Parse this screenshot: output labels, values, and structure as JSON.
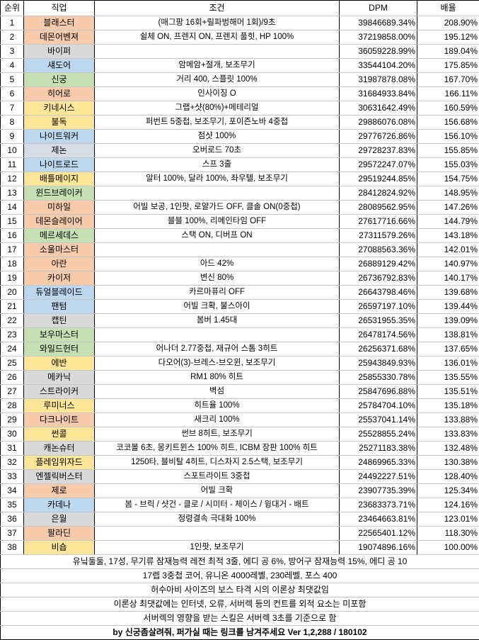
{
  "chart_data": {
    "type": "table",
    "columns": [
      "순위",
      "직업",
      "조건",
      "DPM",
      "배율"
    ],
    "rows": [
      {
        "rank": "1",
        "job": "블래스터",
        "group": "warrior",
        "condition": "(매그팡 16회+릴파벙해머 1회)/9초",
        "dpm": "39846689.34%",
        "ratio": "208.90%"
      },
      {
        "rank": "2",
        "job": "데몬어벤져",
        "group": "warrior",
        "condition": "쉴체 ON, 프렌지 ON, 프렌지 풀힛, HP 100%",
        "dpm": "37219858.00%",
        "ratio": "195.12%"
      },
      {
        "rank": "3",
        "job": "바이퍼",
        "group": "pirate",
        "condition": "",
        "dpm": "36059228.99%",
        "ratio": "189.04%"
      },
      {
        "rank": "4",
        "job": "섀도어",
        "group": "thief",
        "condition": "암메암+절개, 보조무기",
        "dpm": "33544104.20%",
        "ratio": "175.85%"
      },
      {
        "rank": "5",
        "job": "신궁",
        "group": "archer",
        "condition": "거리 400, 스플릿 100%",
        "dpm": "31987878.08%",
        "ratio": "167.70%"
      },
      {
        "rank": "6",
        "job": "히어로",
        "group": "warrior",
        "condition": "인사이징 O",
        "dpm": "31684933.84%",
        "ratio": "166.11%"
      },
      {
        "rank": "7",
        "job": "키네시스",
        "group": "mage",
        "condition": "그랩+샷(80%)+메테리얼",
        "dpm": "30631642.49%",
        "ratio": "160.59%"
      },
      {
        "rank": "8",
        "job": "불독",
        "group": "mage",
        "condition": "퍼번트 5중첩, 보조무기, 포이즌노바 4중첩",
        "dpm": "29886076.08%",
        "ratio": "156.68%"
      },
      {
        "rank": "9",
        "job": "나이트워커",
        "group": "thief",
        "condition": "점샷 100%",
        "dpm": "29776726.86%",
        "ratio": "156.10%"
      },
      {
        "rank": "10",
        "job": "제논",
        "group": "xenon",
        "condition": "오버로드 70초",
        "dpm": "29728237.83%",
        "ratio": "155.85%"
      },
      {
        "rank": "11",
        "job": "나이트로드",
        "group": "thief",
        "condition": "스프 3줄",
        "dpm": "29572247.07%",
        "ratio": "155.03%"
      },
      {
        "rank": "12",
        "job": "배틀메이지",
        "group": "mage",
        "condition": "알터 100%, 달라 100%, 좌우텔, 보조무기",
        "dpm": "29519244.85%",
        "ratio": "154.75%"
      },
      {
        "rank": "13",
        "job": "윈드브레이커",
        "group": "archer",
        "condition": "",
        "dpm": "28412824.92%",
        "ratio": "148.95%"
      },
      {
        "rank": "14",
        "job": "미하일",
        "group": "warrior",
        "condition": "어빌 보공, 1인팟, 로얄가드 OFF, 클솔 ON(0중첩)",
        "dpm": "28089562.95%",
        "ratio": "147.26%"
      },
      {
        "rank": "15",
        "job": "데몬슬레이어",
        "group": "warrior",
        "condition": "블블 100%, 리메인타임 OFF",
        "dpm": "27617716.66%",
        "ratio": "144.79%"
      },
      {
        "rank": "16",
        "job": "메르세데스",
        "group": "archer",
        "condition": "스택 ON, 디버프 ON",
        "dpm": "27311579.26%",
        "ratio": "143.18%"
      },
      {
        "rank": "17",
        "job": "소울마스터",
        "group": "warrior",
        "condition": "",
        "dpm": "27088563.36%",
        "ratio": "142.01%"
      },
      {
        "rank": "18",
        "job": "아란",
        "group": "warrior",
        "condition": "아드 42%",
        "dpm": "26889129.42%",
        "ratio": "140.97%"
      },
      {
        "rank": "19",
        "job": "카이저",
        "group": "warrior",
        "condition": "변신 80%",
        "dpm": "26736792.83%",
        "ratio": "140.17%"
      },
      {
        "rank": "20",
        "job": "듀얼블레이드",
        "group": "thief",
        "condition": "카르마퓨리 OFF",
        "dpm": "26643798.46%",
        "ratio": "139.68%"
      },
      {
        "rank": "21",
        "job": "팬텀",
        "group": "thief",
        "condition": "어빌 크확, 불스아이",
        "dpm": "26597197.10%",
        "ratio": "139.44%"
      },
      {
        "rank": "22",
        "job": "캡틴",
        "group": "pirate",
        "condition": "봄버 1.45대",
        "dpm": "26531955.35%",
        "ratio": "139.09%"
      },
      {
        "rank": "23",
        "job": "보우마스터",
        "group": "archer",
        "condition": "",
        "dpm": "26478174.56%",
        "ratio": "138.81%"
      },
      {
        "rank": "24",
        "job": "와일드헌터",
        "group": "archer",
        "condition": "어나더 2.77중첩, 재규어 스톰 3히트",
        "dpm": "26256371.68%",
        "ratio": "137.65%"
      },
      {
        "rank": "25",
        "job": "에반",
        "group": "mage",
        "condition": "다오어(3)-브레스-브오윈, 보조무기",
        "dpm": "25943849.93%",
        "ratio": "136.01%"
      },
      {
        "rank": "26",
        "job": "메카닉",
        "group": "pirate",
        "condition": "RM1 80% 히트",
        "dpm": "25855330.78%",
        "ratio": "135.55%"
      },
      {
        "rank": "27",
        "job": "스트라이커",
        "group": "pirate",
        "condition": "벽섬",
        "dpm": "25847696.88%",
        "ratio": "135.51%"
      },
      {
        "rank": "28",
        "job": "루미너스",
        "group": "mage",
        "condition": "히트율 100%",
        "dpm": "25784704.10%",
        "ratio": "135.18%"
      },
      {
        "rank": "29",
        "job": "다크나이트",
        "group": "warrior",
        "condition": "새크리 100%",
        "dpm": "25537041.14%",
        "ratio": "133.88%"
      },
      {
        "rank": "30",
        "job": "썬콜",
        "group": "mage",
        "condition": "썬브 8히트, 보조무기",
        "dpm": "25528855.24%",
        "ratio": "133.83%"
      },
      {
        "rank": "31",
        "job": "캐논슈터",
        "group": "pirate",
        "condition": "코코볼 6초, 몽키트윈스 100% 히트, ICBM 장판 100% 히트",
        "dpm": "25271183.38%",
        "ratio": "132.48%"
      },
      {
        "rank": "32",
        "job": "플레임위자드",
        "group": "mage",
        "condition": "1250타, 블비탈 4히트, 디스차지 2.5스택, 보조무기",
        "dpm": "24869965.33%",
        "ratio": "130.38%"
      },
      {
        "rank": "33",
        "job": "엔젤릭버스터",
        "group": "pirate",
        "condition": "스포트라이트 3중첩",
        "dpm": "24492227.51%",
        "ratio": "128.40%"
      },
      {
        "rank": "34",
        "job": "제로",
        "group": "warrior",
        "condition": "어빌 크확",
        "dpm": "23907735.39%",
        "ratio": "125.34%"
      },
      {
        "rank": "35",
        "job": "카데나",
        "group": "thief",
        "condition": "봄 - 브릭 / 샷건 - 클로 / 시미터 - 체이스 / 윙대거 - 배트",
        "dpm": "23683373.71%",
        "ratio": "124.16%"
      },
      {
        "rank": "36",
        "job": "은월",
        "group": "pirate",
        "condition": "정령결속 극대화 100%",
        "dpm": "23464663.81%",
        "ratio": "123.01%"
      },
      {
        "rank": "37",
        "job": "팔라딘",
        "group": "warrior",
        "condition": "",
        "dpm": "22565401.12%",
        "ratio": "118.30%"
      },
      {
        "rank": "38",
        "job": "비숍",
        "group": "mage",
        "condition": "1인팟, 보조무기",
        "dpm": "19074896.16%",
        "ratio": "100.00%"
      }
    ],
    "footer_notes": [
      {
        "text": "유닠둘둘, 17성, 무기류 잠재능력 레전 최적 3줄, 에디 공 6%, 방어구 잠재능력 15%, 에디 공 10",
        "bold": false
      },
      {
        "text": "17렙 3중첩 코어, 유니온 4000레벨, 230레벨, 포스 400",
        "bold": false
      },
      {
        "text": "허수아비 사이즈의 보스 타격 시의 이론상 최댓값임",
        "bold": false
      },
      {
        "text": "이론상 최댓값에는 인터넷, 오류, 서버렉 등의 컨트를 외적 요소는 미포함",
        "bold": false
      },
      {
        "text": "서버렉의 영향을 받는 스킬은 서버렉 3초를 기준으로 함",
        "bold": false
      },
      {
        "text": "by 신궁좀살려줘, 퍼가실 때는 링크를 남겨주세요 Ver 1,2,288 / 180102",
        "bold": true
      }
    ]
  },
  "colors": {
    "warrior": "#F8CBAD",
    "mage": "#FFE699",
    "archer": "#C6E0B4",
    "thief": "#BDD7EE",
    "pirate": "#D9D9D9",
    "xenon": "#D6DCE4"
  }
}
